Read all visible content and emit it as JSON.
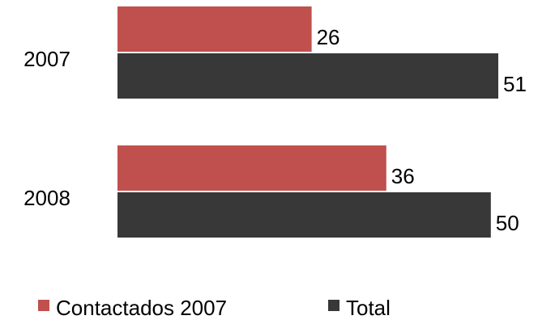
{
  "chart_data": {
    "type": "bar",
    "orientation": "horizontal",
    "categories": [
      "2007",
      "2008"
    ],
    "series": [
      {
        "name": "Contactados 2007",
        "color": "#c0504d",
        "values": [
          26,
          36
        ]
      },
      {
        "name": "Total",
        "color": "#383838",
        "values": [
          51,
          50
        ]
      }
    ],
    "legend": "bottom"
  }
}
